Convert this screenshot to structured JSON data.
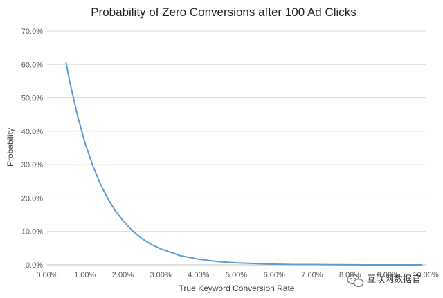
{
  "chart_data": {
    "type": "line",
    "title": "Probability of Zero Conversions after 100 Ad Clicks",
    "xlabel": "True Keyword Conversion Rate",
    "ylabel": "Probability",
    "xlim": [
      0,
      10
    ],
    "ylim": [
      0,
      70
    ],
    "x_ticks": [
      "0.00%",
      "1.00%",
      "2.00%",
      "3.00%",
      "4.00%",
      "5.00%",
      "6.00%",
      "7.00%",
      "8.00%",
      "9.00%",
      "10.00%"
    ],
    "y_ticks": [
      "0.0%",
      "10.0%",
      "20.0%",
      "30.0%",
      "40.0%",
      "50.0%",
      "60.0%",
      "70.0%"
    ],
    "grid": true,
    "legend": "none",
    "series": [
      {
        "color": "#5b9bd5",
        "x": [
          0.5,
          0.6,
          0.8,
          1.0,
          1.2,
          1.4,
          1.6,
          1.8,
          2.0,
          2.25,
          2.5,
          2.75,
          3.0,
          3.5,
          4.0,
          4.5,
          5.0,
          5.5,
          6.0,
          6.5,
          7.0,
          7.5,
          8.0,
          8.5,
          9.0,
          9.5,
          9.9
        ],
        "values": [
          60.6,
          54.8,
          44.8,
          36.6,
          29.9,
          24.4,
          19.9,
          16.2,
          13.3,
          10.2,
          7.9,
          6.1,
          4.8,
          2.8,
          1.7,
          1.0,
          0.6,
          0.4,
          0.2,
          0.1,
          0.1,
          0.04,
          0.02,
          0.01,
          0.01,
          0.0,
          0.0
        ]
      }
    ]
  },
  "watermark": {
    "icon": "wechat-icon",
    "text": "互联网数据官"
  }
}
